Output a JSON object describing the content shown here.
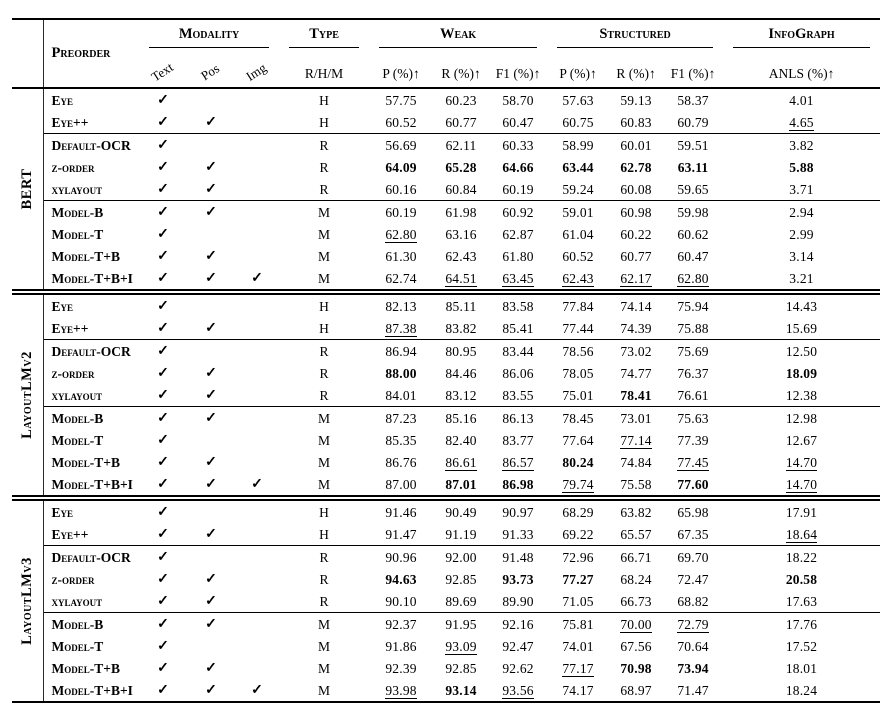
{
  "checkmark": "✓",
  "header": {
    "preorder": "Preorder",
    "modality": "Modality",
    "type": "Type",
    "weak": "Weak",
    "structured": "Structured",
    "infograph": "InfoGraph",
    "modality_cols": [
      "Text",
      "Pos",
      "Img"
    ],
    "type_col": "R/H/M",
    "metric_cols": [
      "P (%)↑",
      "R (%)↑",
      "F1 (%)↑"
    ],
    "anls_col": "ANLS (%)↑"
  },
  "groups": [
    {
      "name": "BERT",
      "rows": [
        {
          "label": "Eye",
          "modality": [
            1,
            0,
            0
          ],
          "type": "H",
          "values": [
            "57.75",
            "60.23",
            "58.70",
            "57.63",
            "59.13",
            "58.37",
            "4.01"
          ],
          "styles": [
            "",
            "",
            "",
            "",
            "",
            "",
            ""
          ]
        },
        {
          "label": "Eye++",
          "modality": [
            1,
            1,
            0
          ],
          "type": "H",
          "values": [
            "60.52",
            "60.77",
            "60.47",
            "60.75",
            "60.83",
            "60.79",
            "4.65"
          ],
          "styles": [
            "",
            "",
            "",
            "",
            "",
            "",
            "u"
          ]
        },
        {
          "label": "Default-OCR",
          "modality": [
            1,
            0,
            0
          ],
          "type": "R",
          "sep": true,
          "values": [
            "56.69",
            "62.11",
            "60.33",
            "58.99",
            "60.01",
            "59.51",
            "3.82"
          ],
          "styles": [
            "",
            "",
            "",
            "",
            "",
            "",
            ""
          ]
        },
        {
          "label": "z-order",
          "modality": [
            1,
            1,
            0
          ],
          "type": "R",
          "values": [
            "64.09",
            "65.28",
            "64.66",
            "63.44",
            "62.78",
            "63.11",
            "5.88"
          ],
          "styles": [
            "b",
            "b",
            "b",
            "b",
            "b",
            "b",
            "b"
          ]
        },
        {
          "label": "xylayout",
          "modality": [
            1,
            1,
            0
          ],
          "type": "R",
          "values": [
            "60.16",
            "60.84",
            "60.19",
            "59.24",
            "60.08",
            "59.65",
            "3.71"
          ],
          "styles": [
            "",
            "",
            "",
            "",
            "",
            "",
            ""
          ]
        },
        {
          "label": "Model-B",
          "modality": [
            1,
            1,
            0
          ],
          "type": "M",
          "sep": true,
          "values": [
            "60.19",
            "61.98",
            "60.92",
            "59.01",
            "60.98",
            "59.98",
            "2.94"
          ],
          "styles": [
            "",
            "",
            "",
            "",
            "",
            "",
            ""
          ]
        },
        {
          "label": "Model-T",
          "modality": [
            1,
            0,
            0
          ],
          "type": "M",
          "values": [
            "62.80",
            "63.16",
            "62.87",
            "61.04",
            "60.22",
            "60.62",
            "2.99"
          ],
          "styles": [
            "u",
            "",
            "",
            "",
            "",
            "",
            ""
          ]
        },
        {
          "label": "Model-T+B",
          "modality": [
            1,
            1,
            0
          ],
          "type": "M",
          "values": [
            "61.30",
            "62.43",
            "61.80",
            "60.52",
            "60.77",
            "60.47",
            "3.14"
          ],
          "styles": [
            "",
            "",
            "",
            "",
            "",
            "",
            ""
          ]
        },
        {
          "label": "Model-T+B+I",
          "modality": [
            1,
            1,
            1
          ],
          "type": "M",
          "values": [
            "62.74",
            "64.51",
            "63.45",
            "62.43",
            "62.17",
            "62.80",
            "3.21"
          ],
          "styles": [
            "",
            "u",
            "u",
            "u",
            "u",
            "u",
            ""
          ]
        }
      ]
    },
    {
      "name": "LayoutLMv2",
      "rows": [
        {
          "label": "Eye",
          "modality": [
            1,
            0,
            0
          ],
          "type": "H",
          "values": [
            "82.13",
            "85.11",
            "83.58",
            "77.84",
            "74.14",
            "75.94",
            "14.43"
          ],
          "styles": [
            "",
            "",
            "",
            "",
            "",
            "",
            ""
          ]
        },
        {
          "label": "Eye++",
          "modality": [
            1,
            1,
            0
          ],
          "type": "H",
          "values": [
            "87.38",
            "83.82",
            "85.41",
            "77.44",
            "74.39",
            "75.88",
            "15.69"
          ],
          "styles": [
            "u",
            "",
            "",
            "",
            "",
            "",
            ""
          ]
        },
        {
          "label": "Default-OCR",
          "modality": [
            1,
            0,
            0
          ],
          "type": "R",
          "sep": true,
          "values": [
            "86.94",
            "80.95",
            "83.44",
            "78.56",
            "73.02",
            "75.69",
            "12.50"
          ],
          "styles": [
            "",
            "",
            "",
            "",
            "",
            "",
            ""
          ]
        },
        {
          "label": "z-order",
          "modality": [
            1,
            1,
            0
          ],
          "type": "R",
          "values": [
            "88.00",
            "84.46",
            "86.06",
            "78.05",
            "74.77",
            "76.37",
            "18.09"
          ],
          "styles": [
            "b",
            "",
            "",
            "",
            "",
            "",
            "b"
          ]
        },
        {
          "label": "xylayout",
          "modality": [
            1,
            1,
            0
          ],
          "type": "R",
          "values": [
            "84.01",
            "83.12",
            "83.55",
            "75.01",
            "78.41",
            "76.61",
            "12.38"
          ],
          "styles": [
            "",
            "",
            "",
            "",
            "b",
            "",
            ""
          ]
        },
        {
          "label": "Model-B",
          "modality": [
            1,
            1,
            0
          ],
          "type": "M",
          "sep": true,
          "values": [
            "87.23",
            "85.16",
            "86.13",
            "78.45",
            "73.01",
            "75.63",
            "12.98"
          ],
          "styles": [
            "",
            "",
            "",
            "",
            "",
            "",
            ""
          ]
        },
        {
          "label": "Model-T",
          "modality": [
            1,
            0,
            0
          ],
          "type": "M",
          "values": [
            "85.35",
            "82.40",
            "83.77",
            "77.64",
            "77.14",
            "77.39",
            "12.67"
          ],
          "styles": [
            "",
            "",
            "",
            "",
            "u",
            "",
            ""
          ]
        },
        {
          "label": "Model-T+B",
          "modality": [
            1,
            1,
            0
          ],
          "type": "M",
          "values": [
            "86.76",
            "86.61",
            "86.57",
            "80.24",
            "74.84",
            "77.45",
            "14.70"
          ],
          "styles": [
            "",
            "u",
            "u",
            "b",
            "",
            "u",
            "u"
          ]
        },
        {
          "label": "Model-T+B+I",
          "modality": [
            1,
            1,
            1
          ],
          "type": "M",
          "values": [
            "87.00",
            "87.01",
            "86.98",
            "79.74",
            "75.58",
            "77.60",
            "14.70"
          ],
          "styles": [
            "",
            "b",
            "b",
            "u",
            "",
            "b",
            "u"
          ]
        }
      ]
    },
    {
      "name": "LayoutLMv3",
      "rows": [
        {
          "label": "Eye",
          "modality": [
            1,
            0,
            0
          ],
          "type": "H",
          "values": [
            "91.46",
            "90.49",
            "90.97",
            "68.29",
            "63.82",
            "65.98",
            "17.91"
          ],
          "styles": [
            "",
            "",
            "",
            "",
            "",
            "",
            ""
          ]
        },
        {
          "label": "Eye++",
          "modality": [
            1,
            1,
            0
          ],
          "type": "H",
          "values": [
            "91.47",
            "91.19",
            "91.33",
            "69.22",
            "65.57",
            "67.35",
            "18.64"
          ],
          "styles": [
            "",
            "",
            "",
            "",
            "",
            "",
            "u"
          ]
        },
        {
          "label": "Default-OCR",
          "modality": [
            1,
            0,
            0
          ],
          "type": "R",
          "sep": true,
          "values": [
            "90.96",
            "92.00",
            "91.48",
            "72.96",
            "66.71",
            "69.70",
            "18.22"
          ],
          "styles": [
            "",
            "",
            "",
            "",
            "",
            "",
            ""
          ]
        },
        {
          "label": "z-order",
          "modality": [
            1,
            1,
            0
          ],
          "type": "R",
          "values": [
            "94.63",
            "92.85",
            "93.73",
            "77.27",
            "68.24",
            "72.47",
            "20.58"
          ],
          "styles": [
            "b",
            "",
            "b",
            "b",
            "",
            "",
            "b"
          ]
        },
        {
          "label": "xylayout",
          "modality": [
            1,
            1,
            0
          ],
          "type": "R",
          "values": [
            "90.10",
            "89.69",
            "89.90",
            "71.05",
            "66.73",
            "68.82",
            "17.63"
          ],
          "styles": [
            "",
            "",
            "",
            "",
            "",
            "",
            ""
          ]
        },
        {
          "label": "Model-B",
          "modality": [
            1,
            1,
            0
          ],
          "type": "M",
          "sep": true,
          "values": [
            "92.37",
            "91.95",
            "92.16",
            "75.81",
            "70.00",
            "72.79",
            "17.76"
          ],
          "styles": [
            "",
            "",
            "",
            "",
            "u",
            "u",
            ""
          ]
        },
        {
          "label": "Model-T",
          "modality": [
            1,
            0,
            0
          ],
          "type": "M",
          "values": [
            "91.86",
            "93.09",
            "92.47",
            "74.01",
            "67.56",
            "70.64",
            "17.52"
          ],
          "styles": [
            "",
            "u",
            "",
            "",
            "",
            "",
            ""
          ]
        },
        {
          "label": "Model-T+B",
          "modality": [
            1,
            1,
            0
          ],
          "type": "M",
          "values": [
            "92.39",
            "92.85",
            "92.62",
            "77.17",
            "70.98",
            "73.94",
            "18.01"
          ],
          "styles": [
            "",
            "",
            "",
            "u",
            "b",
            "b",
            ""
          ]
        },
        {
          "label": "Model-T+B+I",
          "modality": [
            1,
            1,
            1
          ],
          "type": "M",
          "values": [
            "93.98",
            "93.14",
            "93.56",
            "74.17",
            "68.97",
            "71.47",
            "18.24"
          ],
          "styles": [
            "u",
            "b",
            "u",
            "",
            "",
            "",
            ""
          ]
        }
      ]
    }
  ]
}
